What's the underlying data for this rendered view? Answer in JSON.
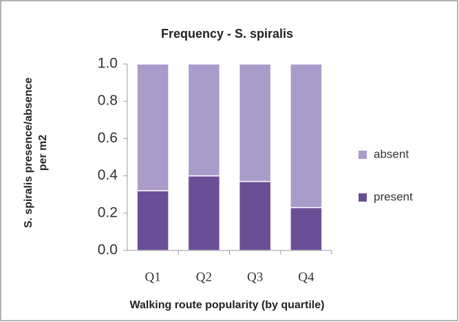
{
  "chart_data": {
    "type": "stacked_bar",
    "title": "Frequency - S. spiralis",
    "ylabel": [
      "S. spiralis presence/absence",
      "per m2"
    ],
    "xlabel": "Walking route popularity (by quartile)",
    "categories": [
      "Q1",
      "Q2",
      "Q3",
      "Q4"
    ],
    "series": [
      {
        "name": "present",
        "color": "#6b4f96",
        "values": [
          0.32,
          0.4,
          0.37,
          0.23
        ]
      },
      {
        "name": "absent",
        "color": "#a99bca",
        "values": [
          0.68,
          0.6,
          0.63,
          0.77
        ]
      }
    ],
    "ylim": [
      0,
      1
    ],
    "yticks": [
      {
        "value": 0,
        "label": "0.0"
      },
      0.2,
      0.4,
      0.6,
      0.8,
      {
        "value": 1,
        "label": "1.0"
      }
    ],
    "legend": "right"
  }
}
